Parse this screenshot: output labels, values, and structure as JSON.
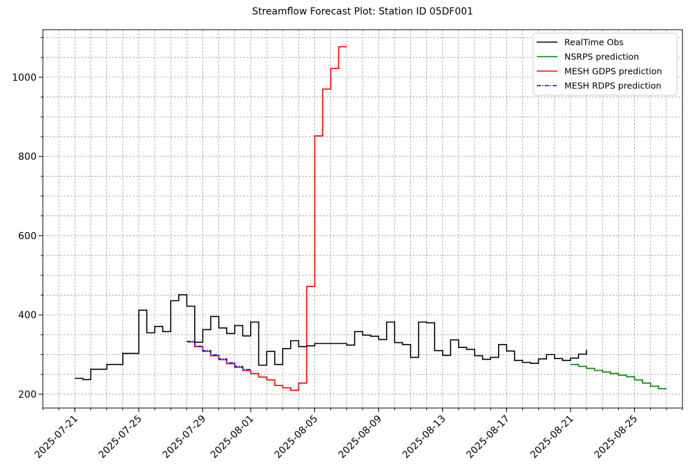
{
  "chart_data": {
    "type": "line",
    "title": "Streamflow Forecast Plot: Station ID 05DF001",
    "xlabel": "",
    "ylabel": "",
    "x_axis": "date",
    "step": "post",
    "xlim": [
      "2025-07-19",
      "2025-08-28"
    ],
    "ylim": [
      165,
      1120
    ],
    "xticks": [
      "2025-07-21",
      "2025-07-25",
      "2025-07-29",
      "2025-08-01",
      "2025-08-05",
      "2025-08-09",
      "2025-08-13",
      "2025-08-17",
      "2025-08-21",
      "2025-08-25"
    ],
    "yticks": [
      200,
      400,
      600,
      800,
      1000
    ],
    "grid": true,
    "legend_position": "top-right",
    "series": [
      {
        "name": "RealTime Obs",
        "color": "#000000",
        "dash": "solid",
        "x": [
          "2025-07-21",
          "2025-07-21T12:00",
          "2025-07-22",
          "2025-07-22T12:00",
          "2025-07-23",
          "2025-07-23T12:00",
          "2025-07-24",
          "2025-07-24T12:00",
          "2025-07-25",
          "2025-07-25T12:00",
          "2025-07-26",
          "2025-07-26T12:00",
          "2025-07-27",
          "2025-07-27T12:00",
          "2025-07-28",
          "2025-07-28T12:00",
          "2025-07-29",
          "2025-07-29T12:00",
          "2025-07-30",
          "2025-07-30T12:00",
          "2025-07-31",
          "2025-07-31T12:00",
          "2025-08-01",
          "2025-08-01T12:00",
          "2025-08-02",
          "2025-08-02T12:00",
          "2025-08-03",
          "2025-08-03T12:00",
          "2025-08-04",
          "2025-08-04T12:00",
          "2025-08-05",
          "2025-08-05T12:00",
          "2025-08-06",
          "2025-08-06T12:00",
          "2025-08-07",
          "2025-08-07T12:00",
          "2025-08-08",
          "2025-08-08T12:00",
          "2025-08-09",
          "2025-08-09T12:00",
          "2025-08-10",
          "2025-08-10T12:00",
          "2025-08-11",
          "2025-08-11T12:00",
          "2025-08-12",
          "2025-08-12T12:00",
          "2025-08-13",
          "2025-08-13T12:00",
          "2025-08-14",
          "2025-08-14T12:00",
          "2025-08-15",
          "2025-08-15T12:00",
          "2025-08-16",
          "2025-08-16T12:00",
          "2025-08-17",
          "2025-08-17T12:00",
          "2025-08-18",
          "2025-08-18T12:00",
          "2025-08-19",
          "2025-08-19T12:00",
          "2025-08-20",
          "2025-08-20T12:00",
          "2025-08-21",
          "2025-08-21T12:00"
        ],
        "y": [
          240,
          237,
          263,
          263,
          275,
          275,
          303,
          303,
          412,
          355,
          371,
          358,
          436,
          451,
          422,
          331,
          363,
          396,
          367,
          353,
          373,
          347,
          382,
          273,
          308,
          275,
          315,
          335,
          320,
          322,
          328,
          328,
          328,
          328,
          324,
          358,
          349,
          346,
          338,
          382,
          330,
          325,
          293,
          382,
          380,
          310,
          298,
          337,
          318,
          313,
          297,
          288,
          293,
          325,
          309,
          285,
          280,
          278,
          289,
          300,
          290,
          285,
          291,
          301
        ],
        "x_end": "2025-08-22",
        "y_end": 312
      },
      {
        "name": "NSRPS prediction",
        "color": "#008000",
        "dash": "solid",
        "x": [
          "2025-08-21",
          "2025-08-21T12:00",
          "2025-08-22",
          "2025-08-22T12:00",
          "2025-08-23",
          "2025-08-23T12:00",
          "2025-08-24",
          "2025-08-24T12:00",
          "2025-08-25",
          "2025-08-25T12:00",
          "2025-08-26",
          "2025-08-26T12:00"
        ],
        "y": [
          275,
          270,
          265,
          260,
          256,
          252,
          248,
          244,
          236,
          228,
          220,
          214
        ],
        "x_end": "2025-08-27"
      },
      {
        "name": "MESH GDPS prediction",
        "color": "#ff0000",
        "dash": "solid",
        "x": [
          "2025-07-28",
          "2025-07-28T12:00",
          "2025-07-29",
          "2025-07-29T12:00",
          "2025-07-30",
          "2025-07-30T12:00",
          "2025-07-31",
          "2025-07-31T12:00",
          "2025-08-01",
          "2025-08-01T12:00",
          "2025-08-02",
          "2025-08-02T12:00",
          "2025-08-03",
          "2025-08-03T12:00",
          "2025-08-04",
          "2025-08-04T12:00",
          "2025-08-05",
          "2025-08-05T12:00",
          "2025-08-06",
          "2025-08-06T12:00"
        ],
        "y": [
          332,
          320,
          308,
          297,
          287,
          277,
          268,
          260,
          252,
          243,
          236,
          222,
          216,
          210,
          228,
          472,
          852,
          970,
          1022,
          1077
        ],
        "x_end": "2025-08-07"
      },
      {
        "name": "MESH RDPS prediction",
        "color": "#0000ff",
        "dash": "dashdot",
        "x": [
          "2025-07-28",
          "2025-07-28T12:00",
          "2025-07-29",
          "2025-07-29T12:00",
          "2025-07-30",
          "2025-07-30T12:00",
          "2025-07-31",
          "2025-07-31T12:00"
        ],
        "y": [
          333,
          321,
          310,
          299,
          289,
          279,
          270,
          262
        ],
        "x_end": "2025-08-01"
      }
    ]
  }
}
